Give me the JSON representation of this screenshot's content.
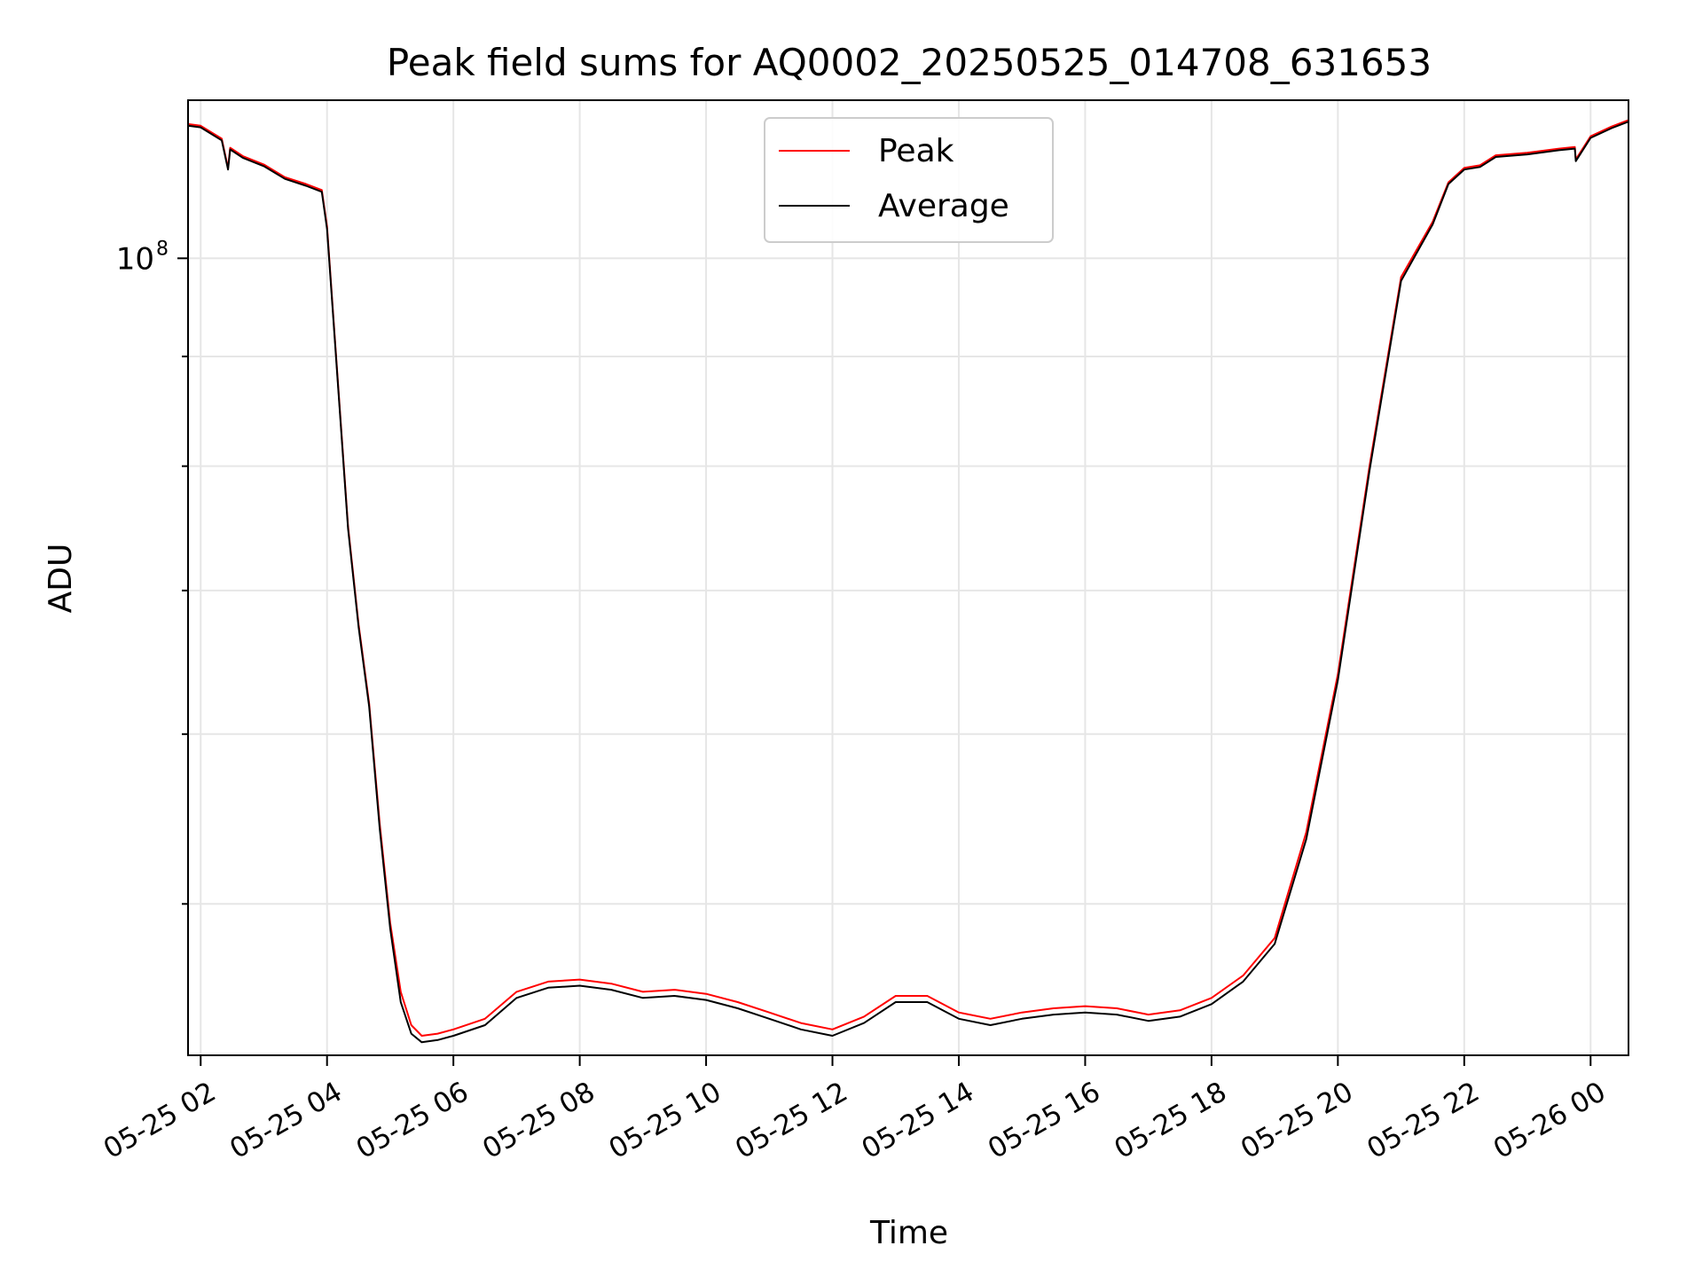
{
  "chart_data": {
    "type": "line",
    "title": "Peak field sums for AQ0002_20250525_014708_631653",
    "xlabel": "Time",
    "ylabel": "ADU",
    "yscale": "log",
    "ylim": [
      42500000.0,
      118500000.0
    ],
    "xlim": [
      "2025-05-25 01:48",
      "2025-05-26 00:36"
    ],
    "x_ticks": [
      "05-25 02",
      "05-25 04",
      "05-25 06",
      "05-25 08",
      "05-25 10",
      "05-25 12",
      "05-25 14",
      "05-25 16",
      "05-25 18",
      "05-25 20",
      "05-25 22",
      "05-26 00"
    ],
    "y_ticks": [
      {
        "label": "10",
        "exponent": "8",
        "value": 100000000
      }
    ],
    "y_minor_ticks": [
      50000000,
      60000000,
      70000000,
      80000000,
      90000000
    ],
    "grid": true,
    "legend_position": "upper center",
    "x": [
      "2025-05-25 01:48",
      "2025-05-25 02:00",
      "2025-05-25 02:20",
      "2025-05-25 02:26",
      "2025-05-25 02:28",
      "2025-05-25 02:40",
      "2025-05-25 03:00",
      "2025-05-25 03:20",
      "2025-05-25 03:40",
      "2025-05-25 03:55",
      "2025-05-25 04:00",
      "2025-05-25 04:10",
      "2025-05-25 04:20",
      "2025-05-25 04:30",
      "2025-05-25 04:40",
      "2025-05-25 04:50",
      "2025-05-25 05:00",
      "2025-05-25 05:10",
      "2025-05-25 05:20",
      "2025-05-25 05:30",
      "2025-05-25 05:45",
      "2025-05-25 06:00",
      "2025-05-25 06:30",
      "2025-05-25 07:00",
      "2025-05-25 07:30",
      "2025-05-25 08:00",
      "2025-05-25 08:30",
      "2025-05-25 09:00",
      "2025-05-25 09:30",
      "2025-05-25 10:00",
      "2025-05-25 10:30",
      "2025-05-25 11:00",
      "2025-05-25 11:30",
      "2025-05-25 12:00",
      "2025-05-25 12:30",
      "2025-05-25 13:00",
      "2025-05-25 13:30",
      "2025-05-25 14:00",
      "2025-05-25 14:30",
      "2025-05-25 15:00",
      "2025-05-25 15:30",
      "2025-05-25 16:00",
      "2025-05-25 16:30",
      "2025-05-25 17:00",
      "2025-05-25 17:30",
      "2025-05-25 18:00",
      "2025-05-25 18:30",
      "2025-05-25 19:00",
      "2025-05-25 19:30",
      "2025-05-25 20:00",
      "2025-05-25 20:30",
      "2025-05-25 21:00",
      "2025-05-25 21:30",
      "2025-05-25 21:45",
      "2025-05-25 22:00",
      "2025-05-25 22:15",
      "2025-05-25 22:30",
      "2025-05-25 23:00",
      "2025-05-25 23:30",
      "2025-05-25 23:45",
      "2025-05-25 23:46",
      "2025-05-26 00:00",
      "2025-05-26 00:20",
      "2025-05-26 00:36"
    ],
    "series": [
      {
        "name": "Peak",
        "color": "#ff0000",
        "values": [
          115500000,
          115300000,
          113700000,
          110200000,
          112600000,
          111600000,
          110600000,
          109100000,
          108300000,
          107600000,
          103500000,
          88000000,
          75000000,
          67500000,
          62000000,
          54500000,
          49000000,
          45500000,
          43900000,
          43400000,
          43500000,
          43700000,
          44200000,
          45500000,
          46000000,
          46100000,
          45900000,
          45500000,
          45600000,
          45400000,
          45000000,
          44500000,
          44000000,
          43700000,
          44300000,
          45300000,
          45300000,
          44500000,
          44200000,
          44500000,
          44700000,
          44800000,
          44700000,
          44400000,
          44600000,
          45200000,
          46300000,
          48200000,
          54000000,
          64000000,
          80000000,
          98000000,
          104000000,
          108500000,
          110200000,
          110500000,
          111700000,
          112000000,
          112500000,
          112700000,
          111200000,
          114000000,
          115200000,
          116000000
        ]
      },
      {
        "name": "Average",
        "color": "#000000",
        "values": [
          115300000,
          115100000,
          113500000,
          110000000,
          112400000,
          111400000,
          110400000,
          108900000,
          108100000,
          107400000,
          103200000,
          87800000,
          74800000,
          67300000,
          61800000,
          54200000,
          48700000,
          45000000,
          43500000,
          43100000,
          43200000,
          43400000,
          43900000,
          45200000,
          45700000,
          45800000,
          45600000,
          45200000,
          45300000,
          45100000,
          44700000,
          44200000,
          43700000,
          43400000,
          44000000,
          45000000,
          45000000,
          44200000,
          43900000,
          44200000,
          44400000,
          44500000,
          44400000,
          44100000,
          44300000,
          44900000,
          46000000,
          47900000,
          53600000,
          63600000,
          79600000,
          97600000,
          103700000,
          108300000,
          110000000,
          110300000,
          111500000,
          111800000,
          112300000,
          112500000,
          111000000,
          113800000,
          115000000,
          115800000
        ]
      }
    ]
  }
}
